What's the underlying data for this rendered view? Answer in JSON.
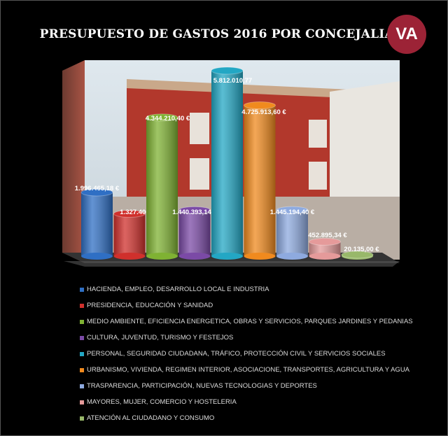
{
  "logo_text": "VA",
  "colors": {
    "logo": "#9c2336",
    "background": "#000000"
  },
  "chart_data": {
    "type": "bar",
    "style": "3d-cylinder",
    "title": "PRESUPUESTO DE GASTOS 2016 POR CONCEJALIAS",
    "legend_position": "bottom",
    "grid": false,
    "ylim": [
      0,
      5812010.77
    ],
    "categories": [
      "HACIENDA, EMPLEO, DESARROLLO LOCAL E INDUSTRIA",
      "PRESIDENCIA, EDUCACIÓN Y SANIDAD",
      "MEDIO AMBIENTE, EFICIENCIA ENERGETICA, OBRAS Y SERVICIOS, PARQUES JARDINES Y PEDANIAS",
      "CULTURA, JUVENTUD, TURISMO Y FESTEJOS",
      "PERSONAL, SEGURIDAD CIUDADANA, TRÁFICO, PROTECCIÓN CIVIL Y SERVICIOS SOCIALES",
      "URBANISMO, VIVIENDA, REGIMEN INTERIOR, ASOCIACIONE, TRANSPORTES, AGRICULTURA Y AGUA",
      "TRASPARENCIA, PARTICIPACIÓN, NUEVAS TECNOLOGIAS Y DEPORTES",
      "MAYORES, MUJER, COMERCIO Y HOSTELERIA",
      "ATENCIÓN AL CIUDADANO Y CONSUMO"
    ],
    "values": [
      1996465.18,
      1327406.89,
      4344210.4,
      1440393.14,
      5812010.77,
      4725913.6,
      1445194.4,
      452895.34,
      20135.0
    ],
    "data_labels": [
      "1.996.465,18 €",
      "1.327.406,89 €",
      "4.344.210,40 €",
      "1.440.393,14 €",
      "5.812.010,77",
      "4.725.913,60 €",
      "1.445.194,40 €",
      "452.895,34 €",
      "20.135,00 €"
    ],
    "series_colors": [
      "#2f6fc4",
      "#d0302c",
      "#7fb233",
      "#7b4aa6",
      "#23a7c4",
      "#f08a1e",
      "#8eaadf",
      "#e59a9a",
      "#98b86a"
    ]
  }
}
